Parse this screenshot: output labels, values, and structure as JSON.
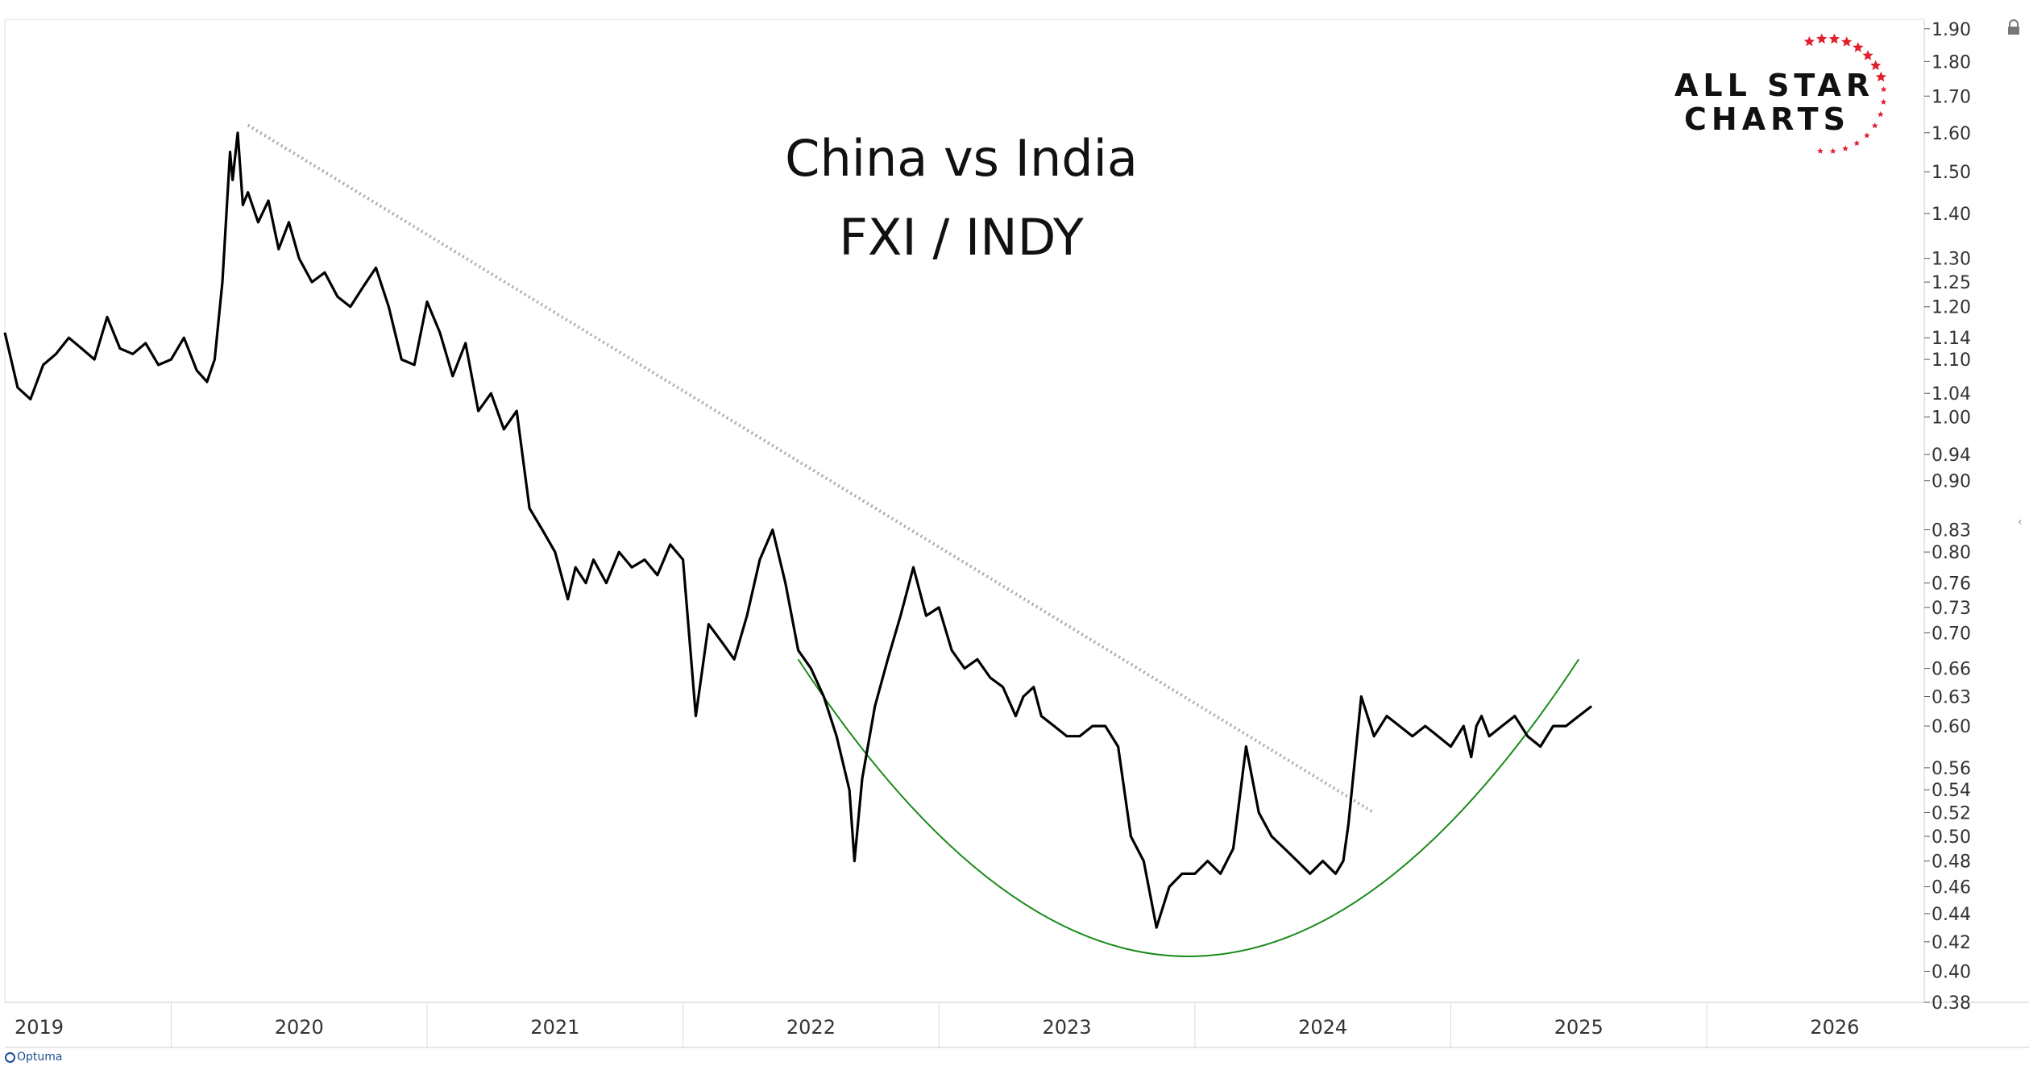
{
  "brand": {
    "text": "Optuma"
  },
  "logo": {
    "line1": "ALL STAR",
    "line2": "CHARTS",
    "star_color": "#e0202e"
  },
  "icons": {
    "lock": "lock-icon",
    "collapse": "chevron-left-icon",
    "brand": "optuma-logo-icon"
  },
  "colors": {
    "price_line": "#000000",
    "trendline": "#aaaaaa",
    "arc": "#1a8a1a",
    "grid": "#d9d9d9",
    "axis_text": "#333333"
  },
  "chart_data": {
    "type": "line",
    "title_line1": "China vs India",
    "title_line2": "FXI / INDY",
    "y_scale": "log",
    "ylim": [
      0.38,
      1.93
    ],
    "xlim": [
      2018.85,
      2026.35
    ],
    "y_ticks": [
      "1.90",
      "1.80",
      "1.70",
      "1.60",
      "1.50",
      "1.40",
      "1.30",
      "1.25",
      "1.20",
      "1.14",
      "1.10",
      "1.04",
      "1.00",
      "0.94",
      "0.90",
      "0.83",
      "0.80",
      "0.76",
      "0.73",
      "0.70",
      "0.66",
      "0.63",
      "0.60",
      "0.56",
      "0.54",
      "0.52",
      "0.50",
      "0.48",
      "0.46",
      "0.44",
      "0.42",
      "0.40",
      "0.38"
    ],
    "x_ticks": [
      "2019",
      "2020",
      "2021",
      "2022",
      "2023",
      "2024",
      "2025",
      "2026"
    ],
    "x_tick_positions": [
      2018.85,
      2020.0,
      2021.0,
      2022.0,
      2023.0,
      2024.0,
      2025.0,
      2026.0
    ],
    "x_tick_boundaries": [
      2019.5,
      2020.5,
      2021.5,
      2022.5,
      2023.5,
      2024.5,
      2025.5
    ],
    "grid": false,
    "series": [
      {
        "x": [
          2018.85,
          2018.9,
          2018.95,
          2019.0,
          2019.05,
          2019.1,
          2019.15,
          2019.2,
          2019.25,
          2019.3,
          2019.35,
          2019.4,
          2019.45,
          2019.5,
          2019.55,
          2019.6,
          2019.64,
          2019.67,
          2019.7,
          2019.73,
          2019.74,
          2019.76,
          2019.78,
          2019.8,
          2019.84,
          2019.88,
          2019.92,
          2019.96,
          2020.0,
          2020.05,
          2020.1,
          2020.15,
          2020.2,
          2020.25,
          2020.3,
          2020.35,
          2020.4,
          2020.45,
          2020.5,
          2020.55,
          2020.6,
          2020.65,
          2020.7,
          2020.75,
          2020.8,
          2020.85,
          2020.9,
          2020.95,
          2021.0,
          2021.05,
          2021.08,
          2021.12,
          2021.15,
          2021.2,
          2021.25,
          2021.3,
          2021.35,
          2021.4,
          2021.45,
          2021.5,
          2021.55,
          2021.6,
          2021.65,
          2021.7,
          2021.75,
          2021.8,
          2021.85,
          2021.9,
          2021.95,
          2022.0,
          2022.05,
          2022.1,
          2022.15,
          2022.17,
          2022.2,
          2022.25,
          2022.3,
          2022.35,
          2022.4,
          2022.45,
          2022.5,
          2022.55,
          2022.6,
          2022.65,
          2022.7,
          2022.75,
          2022.8,
          2022.83,
          2022.87,
          2022.9,
          2022.95,
          2023.0,
          2023.05,
          2023.1,
          2023.15,
          2023.2,
          2023.25,
          2023.3,
          2023.35,
          2023.4,
          2023.45,
          2023.5,
          2023.55,
          2023.6,
          2023.65,
          2023.7,
          2023.75,
          2023.8,
          2023.85,
          2023.9,
          2023.95,
          2024.0,
          2024.05,
          2024.08,
          2024.1,
          2024.15,
          2024.2,
          2024.25,
          2024.3,
          2024.35,
          2024.4,
          2024.45,
          2024.5,
          2024.55,
          2024.58,
          2024.6,
          2024.62,
          2024.65,
          2024.7,
          2024.75,
          2024.8,
          2024.85,
          2024.9,
          2024.95,
          2025.0,
          2025.05
        ],
        "values": [
          1.15,
          1.05,
          1.03,
          1.09,
          1.11,
          1.14,
          1.12,
          1.1,
          1.18,
          1.12,
          1.11,
          1.13,
          1.09,
          1.1,
          1.14,
          1.08,
          1.06,
          1.1,
          1.25,
          1.55,
          1.48,
          1.6,
          1.42,
          1.45,
          1.38,
          1.43,
          1.32,
          1.38,
          1.3,
          1.25,
          1.27,
          1.22,
          1.2,
          1.24,
          1.28,
          1.2,
          1.1,
          1.09,
          1.21,
          1.15,
          1.07,
          1.13,
          1.01,
          1.04,
          0.98,
          1.01,
          0.86,
          0.83,
          0.8,
          0.74,
          0.78,
          0.76,
          0.79,
          0.76,
          0.8,
          0.78,
          0.79,
          0.77,
          0.81,
          0.79,
          0.61,
          0.71,
          0.69,
          0.67,
          0.72,
          0.79,
          0.83,
          0.76,
          0.68,
          0.66,
          0.63,
          0.59,
          0.54,
          0.48,
          0.55,
          0.62,
          0.67,
          0.72,
          0.78,
          0.72,
          0.73,
          0.68,
          0.66,
          0.67,
          0.65,
          0.64,
          0.61,
          0.63,
          0.64,
          0.61,
          0.6,
          0.59,
          0.59,
          0.6,
          0.6,
          0.58,
          0.5,
          0.48,
          0.43,
          0.46,
          0.47,
          0.47,
          0.48,
          0.47,
          0.49,
          0.58,
          0.52,
          0.5,
          0.49,
          0.48,
          0.47,
          0.48,
          0.47,
          0.48,
          0.51,
          0.63,
          0.59,
          0.61,
          0.6,
          0.59,
          0.6,
          0.59,
          0.58,
          0.6,
          0.57,
          0.6,
          0.61,
          0.59,
          0.6,
          0.61,
          0.59,
          0.58,
          0.6,
          0.6,
          0.61,
          0.62
        ]
      }
    ],
    "trendline": {
      "x": [
        2019.8,
        2024.2
      ],
      "values": [
        1.62,
        0.52
      ],
      "style": "dotted"
    },
    "arc": {
      "x_start": 2021.95,
      "x_end": 2025.0,
      "y_ends": 0.67,
      "y_min": 0.41
    }
  }
}
